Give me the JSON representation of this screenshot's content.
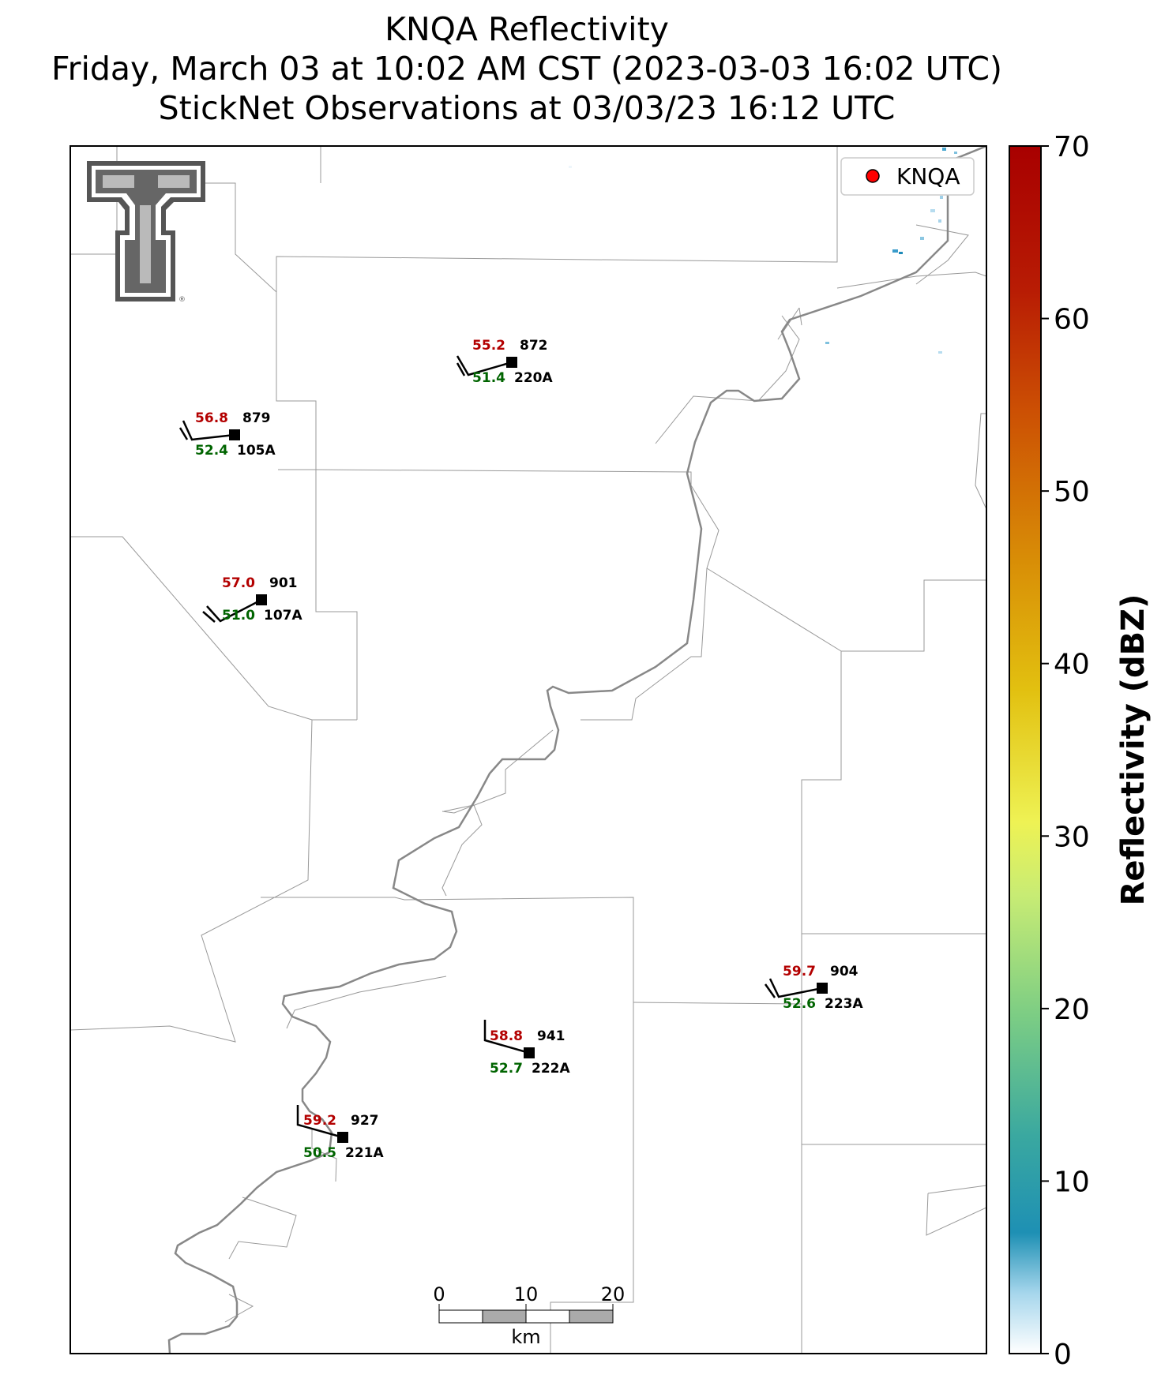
{
  "title": {
    "line1": "KNQA Reflectivity",
    "line2": "Friday, March 03 at 10:02 AM CST (2023-03-03 16:02 UTC)",
    "line3": "StickNet Observations at 03/03/23 16:12 UTC"
  },
  "legend": {
    "entry": "KNQA",
    "marker_color": "#ff0000"
  },
  "colorbar": {
    "label": "Reflectivity (dBZ)",
    "min": 0,
    "max": 70,
    "ticks": [
      "0",
      "10",
      "20",
      "30",
      "40",
      "50",
      "60",
      "70"
    ]
  },
  "scale_bar": {
    "unit": "km",
    "ticks": [
      "0",
      "10",
      "20"
    ]
  },
  "logo": {
    "name": "Texas Tech Double T",
    "color": "#666666"
  },
  "stations": [
    {
      "id": "220A",
      "temp": "55.2",
      "dew": "51.4",
      "pressure": "872"
    },
    {
      "id": "105A",
      "temp": "56.8",
      "dew": "52.4",
      "pressure": "879"
    },
    {
      "id": "107A",
      "temp": "57.0",
      "dew": "51.0",
      "pressure": "901"
    },
    {
      "id": "223A",
      "temp": "59.7",
      "dew": "52.6",
      "pressure": "904"
    },
    {
      "id": "222A",
      "temp": "58.8",
      "dew": "52.7",
      "pressure": "941"
    },
    {
      "id": "221A",
      "temp": "59.2",
      "dew": "50.5",
      "pressure": "927"
    }
  ]
}
